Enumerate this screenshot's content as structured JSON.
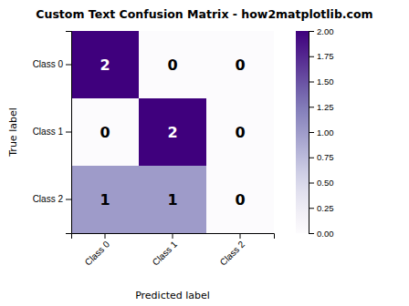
{
  "chart_data": {
    "type": "heatmap",
    "title": "Custom Text Confusion Matrix - how2matplotlib.com",
    "xlabel": "Predicted label",
    "ylabel": "True label",
    "categories": [
      "Class 0",
      "Class 1",
      "Class 2"
    ],
    "cells": [
      [
        2,
        0,
        0
      ],
      [
        0,
        2,
        0
      ],
      [
        1,
        1,
        0
      ]
    ],
    "data_labels": true,
    "color_range": [
      0,
      2
    ],
    "colorbar_ticks": [
      {
        "value": 0,
        "label": "0.00"
      },
      {
        "value": 0.25,
        "label": "0.25"
      },
      {
        "value": 0.5,
        "label": "0.50"
      },
      {
        "value": 0.75,
        "label": "0.75"
      },
      {
        "value": 1,
        "label": "1.00"
      },
      {
        "value": 1.25,
        "label": "1.25"
      },
      {
        "value": 1.5,
        "label": "1.50"
      },
      {
        "value": 1.75,
        "label": "1.75"
      },
      {
        "value": 2,
        "label": "2.00"
      }
    ]
  }
}
